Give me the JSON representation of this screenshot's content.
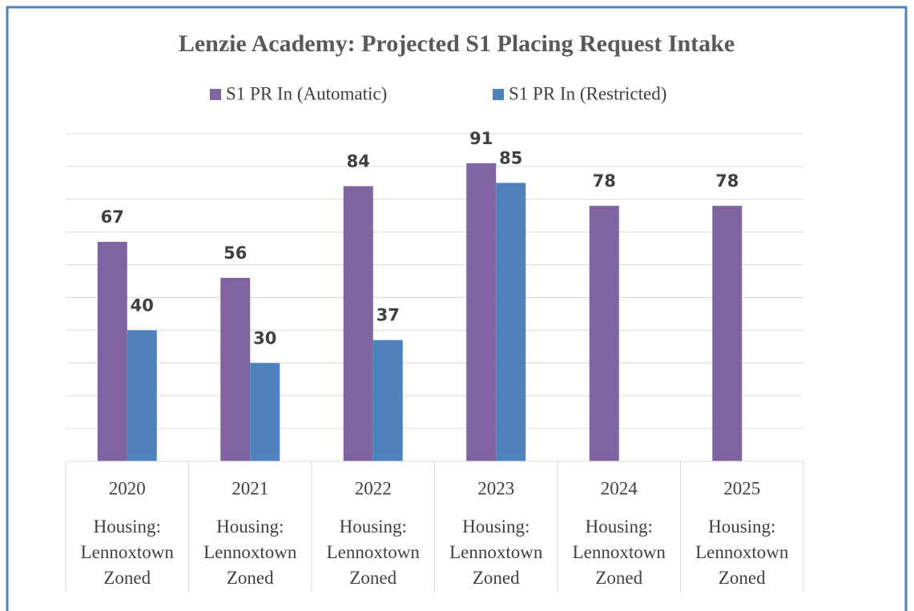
{
  "chart_data": {
    "type": "bar",
    "title": "Lenzie Academy: Projected S1 Placing Request Intake",
    "categories": [
      "2020",
      "2021",
      "2022",
      "2023",
      "2024",
      "2025"
    ],
    "category_groups": [
      "Housing: Lennoxtown Zoned",
      "Housing: Lennoxtown Zoned",
      "Housing: Lennoxtown Zoned",
      "Housing: Lennoxtown Zoned",
      "Housing: Lennoxtown Zoned",
      "Housing: Lennoxtown Zoned"
    ],
    "series": [
      {
        "name": "S1 PR In (Automatic)",
        "color": "#8064a2",
        "values": [
          67,
          56,
          84,
          91,
          78,
          78
        ]
      },
      {
        "name": "S1 PR In (Restricted)",
        "color": "#4f81bd",
        "values": [
          40,
          30,
          37,
          85,
          null,
          null
        ]
      }
    ],
    "ylim": [
      0,
      100
    ],
    "yticks": [
      0,
      10,
      20,
      30,
      40,
      50,
      60,
      70,
      80,
      90,
      100
    ],
    "grid": true,
    "legend": "top"
  }
}
